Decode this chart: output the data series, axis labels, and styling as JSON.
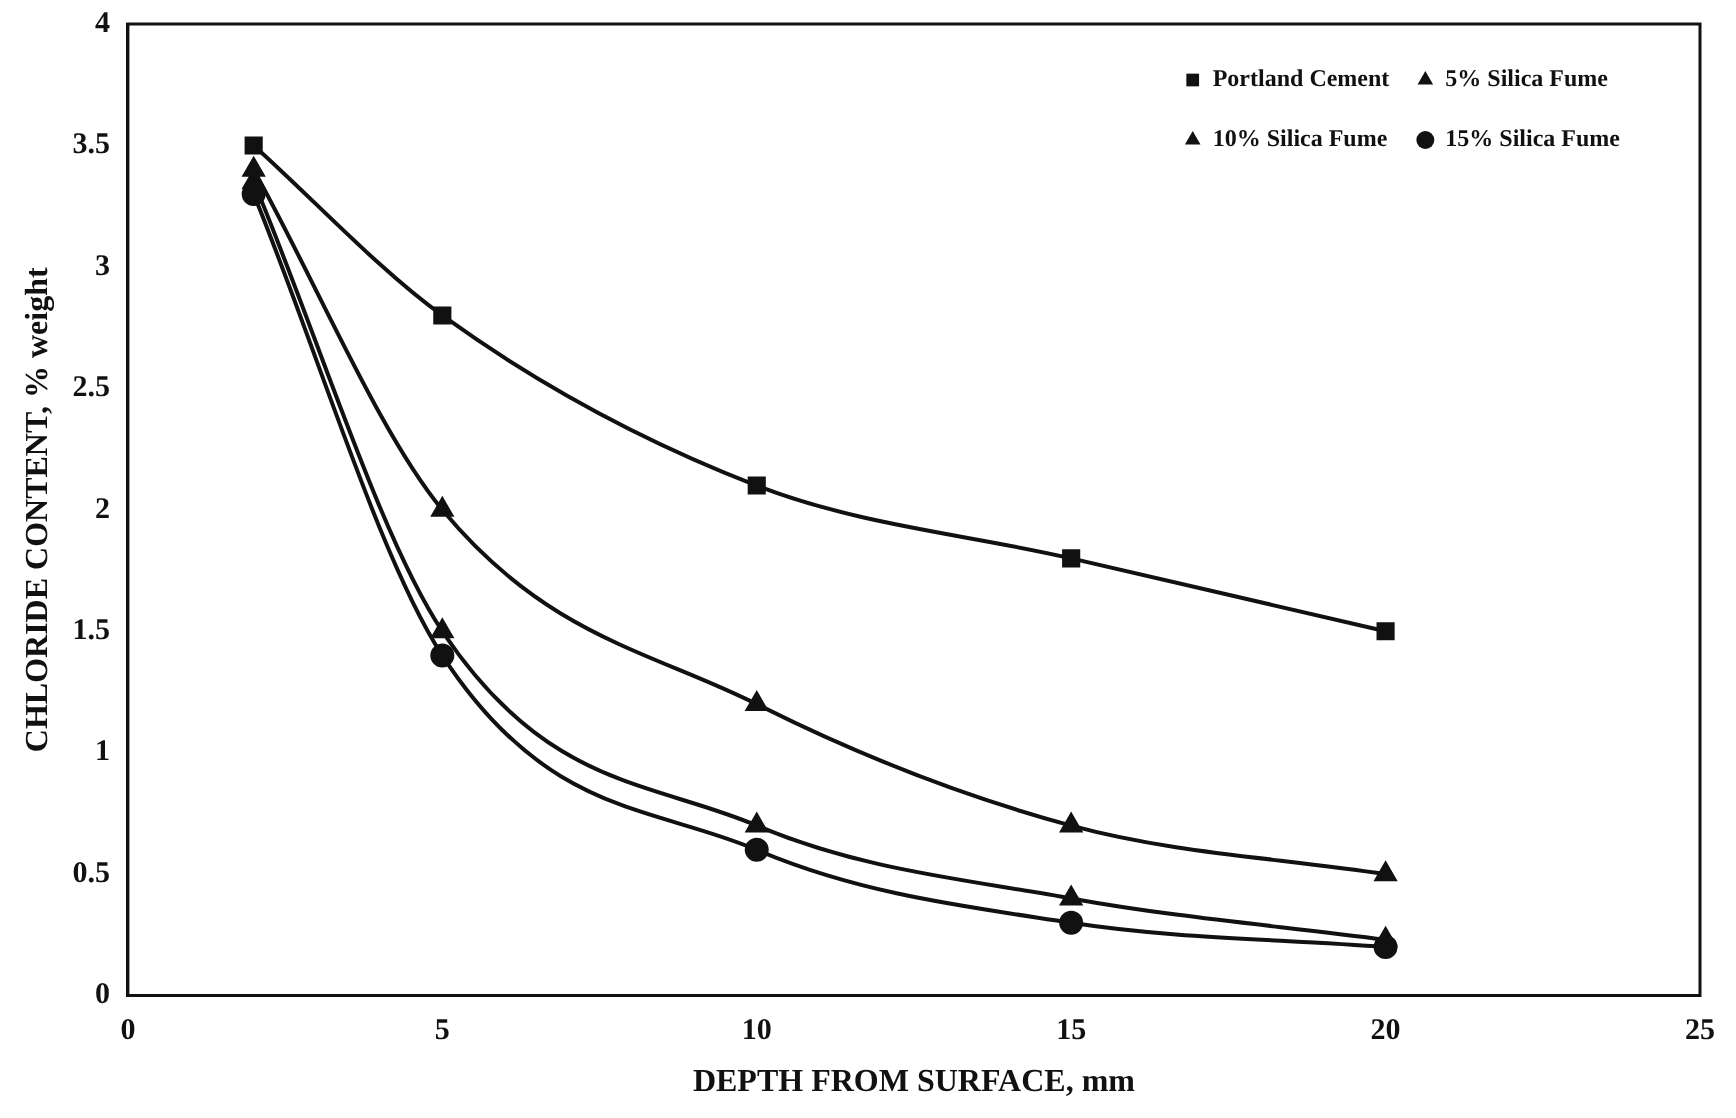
{
  "chart_data": {
    "type": "line",
    "xlabel": "DEPTH FROM SURFACE, mm",
    "ylabel": "CHLORIDE CONTENT, % weight",
    "x": [
      2,
      5,
      10,
      15,
      20
    ],
    "series": [
      {
        "name": "Portland Cement",
        "color": "#111111",
        "marker": "square",
        "values": [
          3.5,
          2.8,
          2.1,
          1.8,
          1.5
        ]
      },
      {
        "name": "5% Silica Fume",
        "color": "#111111",
        "marker": "triangle",
        "values": [
          3.4,
          2.0,
          1.2,
          0.7,
          0.5
        ]
      },
      {
        "name": "10% Silica Fume",
        "color": "#111111",
        "marker": "triangle",
        "values": [
          3.35,
          1.5,
          0.7,
          0.4,
          0.23
        ]
      },
      {
        "name": "15% Silica Fume",
        "color": "#111111",
        "marker": "circle",
        "values": [
          3.3,
          1.4,
          0.6,
          0.3,
          0.2
        ]
      }
    ],
    "xlim": [
      0,
      25
    ],
    "xticks": [
      0,
      5,
      10,
      15,
      20,
      25
    ],
    "ylim": [
      0,
      4
    ],
    "yticks": [
      0,
      0.5,
      1,
      1.5,
      2,
      2.5,
      3,
      3.5,
      4
    ],
    "grid": false,
    "legend": "top right",
    "line_style": "solid"
  }
}
